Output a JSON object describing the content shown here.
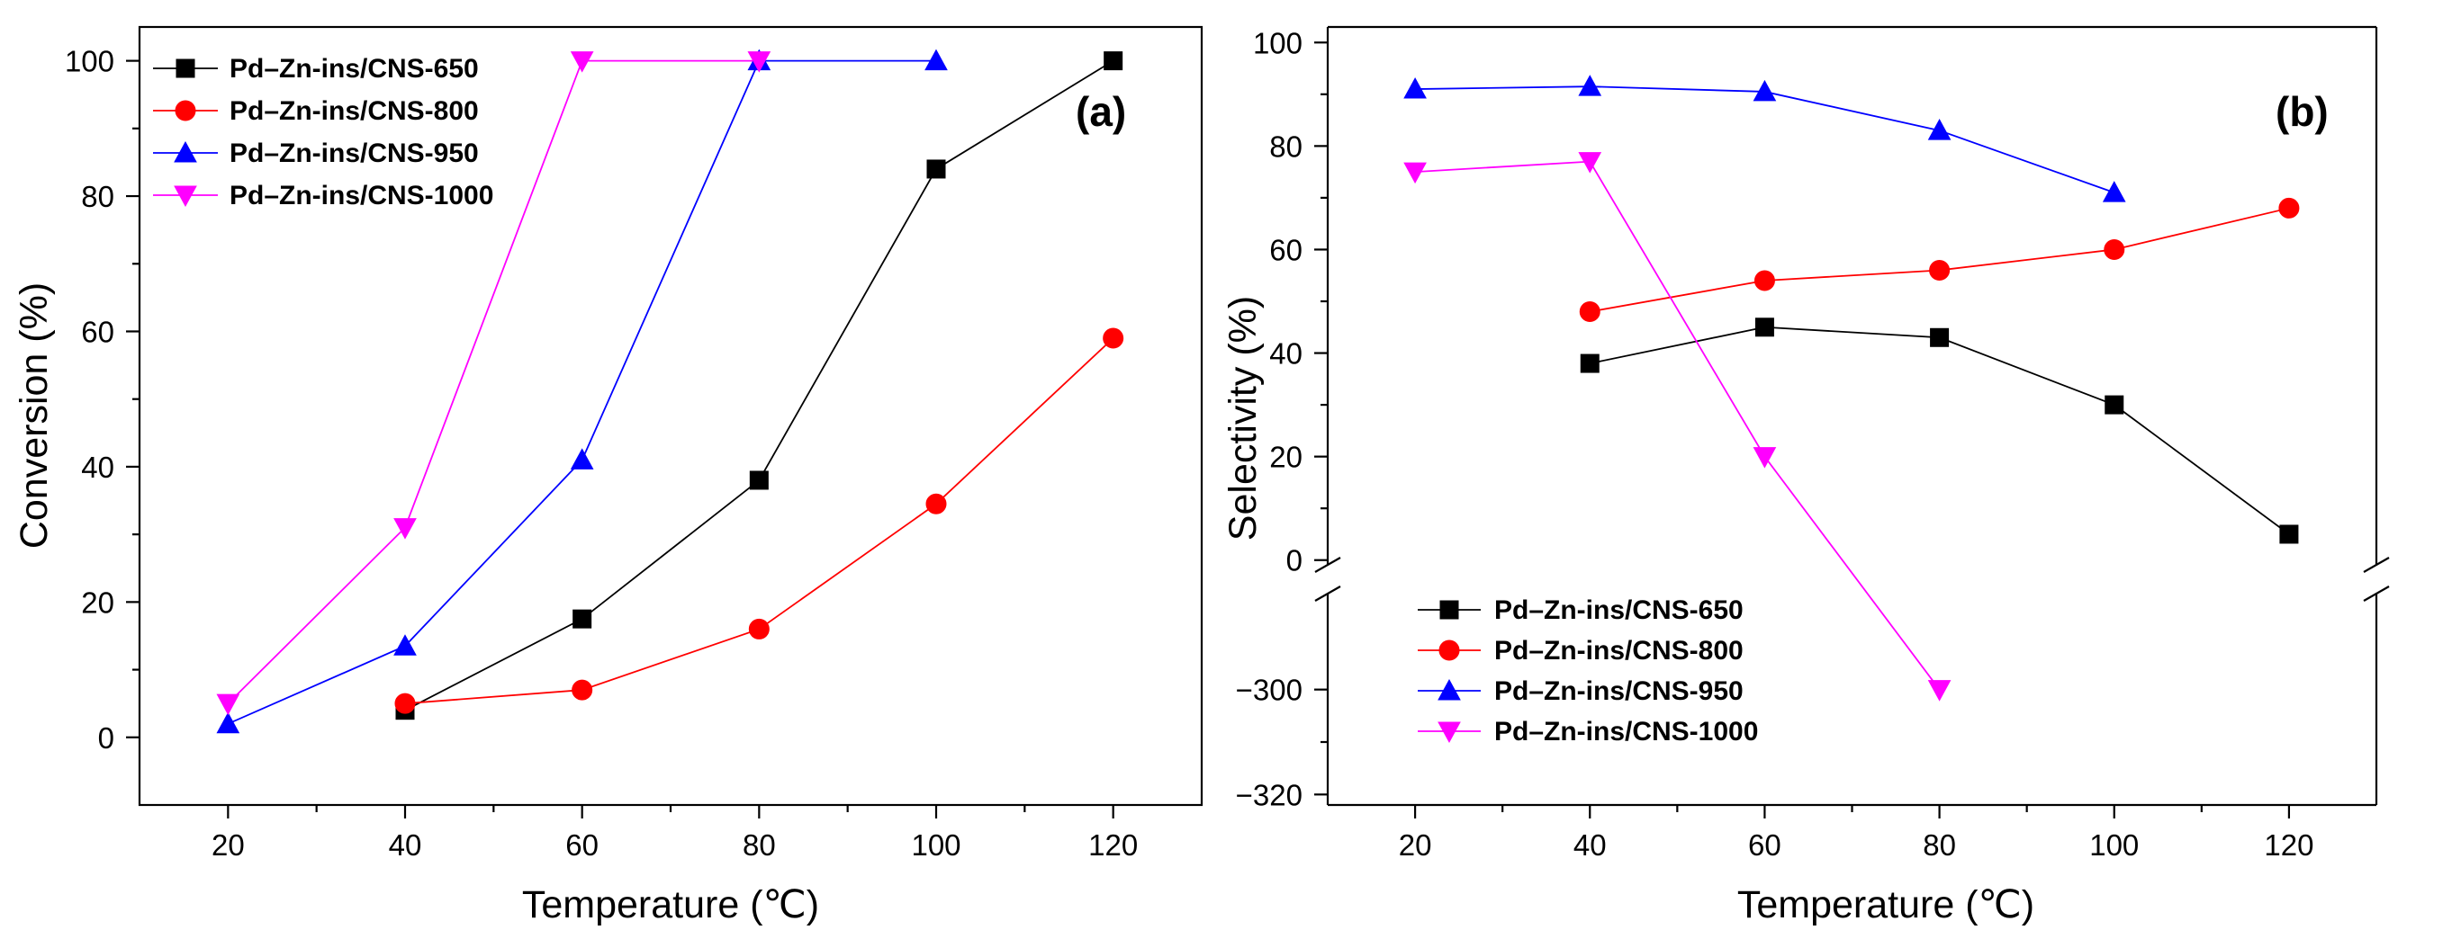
{
  "chart_data": [
    {
      "panel": "(a)",
      "type": "line",
      "xlabel": "Temperature (℃)",
      "ylabel": "Conversion (%)",
      "xlim": [
        10,
        130
      ],
      "ylim": [
        -10,
        105
      ],
      "xticks": [
        "20",
        "40",
        "60",
        "80",
        "100",
        "120"
      ],
      "yticks": [
        "0",
        "20",
        "40",
        "60",
        "80",
        "100"
      ],
      "legend_position": "top-left",
      "series": [
        {
          "name": "Pd–Zn-ins/CNS-650",
          "color": "#000000",
          "marker": "square",
          "x": [
            40,
            60,
            80,
            100,
            120
          ],
          "y": [
            4,
            17.5,
            38,
            84,
            100
          ]
        },
        {
          "name": "Pd–Zn-ins/CNS-800",
          "color": "#ff0000",
          "marker": "circle",
          "x": [
            40,
            60,
            80,
            100,
            120
          ],
          "y": [
            5,
            7,
            16,
            34.5,
            59
          ]
        },
        {
          "name": "Pd–Zn-ins/CNS-950",
          "color": "#0000ff",
          "marker": "triangle-up",
          "x": [
            20,
            40,
            60,
            80,
            100
          ],
          "y": [
            2,
            13.5,
            41,
            100,
            100
          ]
        },
        {
          "name": "Pd–Zn-ins/CNS-1000",
          "color": "#ff00ff",
          "marker": "triangle-down",
          "x": [
            20,
            40,
            60,
            80
          ],
          "y": [
            5,
            31,
            100,
            100
          ]
        }
      ]
    },
    {
      "panel": "(b)",
      "type": "line",
      "xlabel": "Temperature (℃)",
      "ylabel": "Selectivity (%)",
      "xlim": [
        10,
        130
      ],
      "ylim_upper": [
        -3,
        103
      ],
      "ylim_lower": [
        -322,
        -280
      ],
      "axis_break_between": [
        0,
        -280
      ],
      "xticks": [
        "20",
        "40",
        "60",
        "80",
        "100",
        "120"
      ],
      "yticks_upper": [
        "0",
        "20",
        "40",
        "60",
        "80",
        "100"
      ],
      "yticks_lower": [
        "−300",
        "−320"
      ],
      "legend_position": "bottom-left",
      "series": [
        {
          "name": "Pd–Zn-ins/CNS-650",
          "color": "#000000",
          "marker": "square",
          "x": [
            40,
            60,
            80,
            100,
            120
          ],
          "y": [
            38,
            45,
            43,
            30,
            5
          ]
        },
        {
          "name": "Pd–Zn-ins/CNS-800",
          "color": "#ff0000",
          "marker": "circle",
          "x": [
            40,
            60,
            80,
            100,
            120
          ],
          "y": [
            48,
            54,
            56,
            60,
            68
          ]
        },
        {
          "name": "Pd–Zn-ins/CNS-950",
          "color": "#0000ff",
          "marker": "triangle-up",
          "x": [
            20,
            40,
            60,
            80,
            100
          ],
          "y": [
            91,
            91.5,
            90.5,
            83,
            71
          ]
        },
        {
          "name": "Pd–Zn-ins/CNS-1000",
          "color": "#ff00ff",
          "marker": "triangle-down",
          "x": [
            20,
            40,
            60,
            80
          ],
          "y": [
            75,
            77,
            20,
            -300
          ]
        }
      ]
    }
  ]
}
